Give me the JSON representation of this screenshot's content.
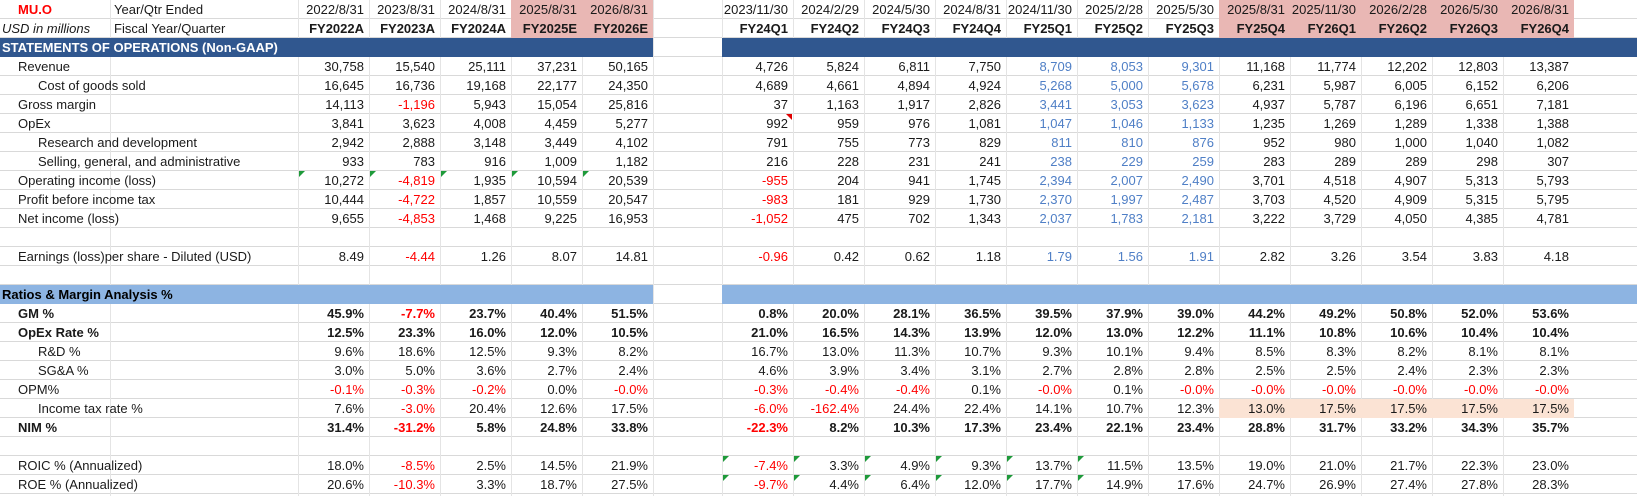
{
  "colors": {
    "pink_header": "#e9b7b4",
    "section_dark": "#30578f",
    "section_light": "#8db4e2",
    "negative": "#ff0000",
    "reported_blue": "#4f7fc6",
    "peach": "#fbe3d4"
  },
  "header": {
    "ticker": "MU.O",
    "year_label": "Year/Qtr Ended",
    "units": "USD in millions",
    "fiscal_label": "Fiscal Year/Quarter",
    "annual_dates": [
      "2022/8/31",
      "2023/8/31",
      "2024/8/31",
      "2025/8/31",
      "2026/8/31"
    ],
    "annual_periods": [
      "FY2022A",
      "FY2023A",
      "FY2024A",
      "FY2025E",
      "FY2026E"
    ],
    "quarter_dates": [
      "2023/11/30",
      "2024/2/29",
      "2024/5/30",
      "2024/8/31",
      "2024/11/30",
      "2025/2/28",
      "2025/5/30",
      "2025/8/31",
      "2025/11/30",
      "2026/2/28",
      "2026/5/30",
      "2026/8/31"
    ],
    "quarter_periods": [
      "FY24Q1",
      "FY24Q2",
      "FY24Q3",
      "FY24Q4",
      "FY25Q1",
      "FY25Q2",
      "FY25Q3",
      "FY25Q4",
      "FY26Q1",
      "FY26Q2",
      "FY26Q3",
      "FY26Q4"
    ]
  },
  "sections": {
    "operations": "STATEMENTS OF OPERATIONS (Non-GAAP)",
    "ratios": "Ratios & Margin Analysis %"
  },
  "rows": [
    {
      "label": "Revenue",
      "annual": [
        "30,758",
        "15,540",
        "25,111",
        "37,231",
        "50,165"
      ],
      "quarterly": [
        "4,726",
        "5,824",
        "6,811",
        "7,750",
        "8,709",
        "8,053",
        "9,301",
        "11,168",
        "11,774",
        "12,202",
        "12,803",
        "13,387"
      ]
    },
    {
      "label": "Cost of goods sold",
      "annual": [
        "16,645",
        "16,736",
        "19,168",
        "22,177",
        "24,350"
      ],
      "quarterly": [
        "4,689",
        "4,661",
        "4,894",
        "4,924",
        "5,268",
        "5,000",
        "5,678",
        "6,231",
        "5,987",
        "6,005",
        "6,152",
        "6,206"
      ]
    },
    {
      "label": "Gross margin",
      "annual": [
        "14,113",
        "-1,196",
        "5,943",
        "15,054",
        "25,816"
      ],
      "quarterly": [
        "37",
        "1,163",
        "1,917",
        "2,826",
        "3,441",
        "3,053",
        "3,623",
        "4,937",
        "5,787",
        "6,196",
        "6,651",
        "7,181"
      ]
    },
    {
      "label": "OpEx",
      "annual": [
        "3,841",
        "3,623",
        "4,008",
        "4,459",
        "5,277"
      ],
      "quarterly": [
        "992",
        "959",
        "976",
        "1,081",
        "1,047",
        "1,046",
        "1,133",
        "1,235",
        "1,269",
        "1,289",
        "1,338",
        "1,388"
      ]
    },
    {
      "label": "Research and development",
      "annual": [
        "2,942",
        "2,888",
        "3,148",
        "3,449",
        "4,102"
      ],
      "quarterly": [
        "791",
        "755",
        "773",
        "829",
        "811",
        "810",
        "876",
        "952",
        "980",
        "1,000",
        "1,040",
        "1,082"
      ]
    },
    {
      "label": "Selling, general, and administrative",
      "annual": [
        "933",
        "783",
        "916",
        "1,009",
        "1,182"
      ],
      "quarterly": [
        "216",
        "228",
        "231",
        "241",
        "238",
        "229",
        "259",
        "283",
        "289",
        "289",
        "298",
        "307"
      ]
    },
    {
      "label": "Operating income (loss)",
      "annual": [
        "10,272",
        "-4,819",
        "1,935",
        "10,594",
        "20,539"
      ],
      "quarterly": [
        "-955",
        "204",
        "941",
        "1,745",
        "2,394",
        "2,007",
        "2,490",
        "3,701",
        "4,518",
        "4,907",
        "5,313",
        "5,793"
      ]
    },
    {
      "label": "Profit before income tax",
      "annual": [
        "10,444",
        "-4,722",
        "1,857",
        "10,559",
        "20,547"
      ],
      "quarterly": [
        "-983",
        "181",
        "929",
        "1,730",
        "2,370",
        "1,997",
        "2,487",
        "3,703",
        "4,520",
        "4,909",
        "5,315",
        "5,795"
      ]
    },
    {
      "label": "Net income (loss)",
      "annual": [
        "9,655",
        "-4,853",
        "1,468",
        "9,225",
        "16,953"
      ],
      "quarterly": [
        "-1,052",
        "475",
        "702",
        "1,343",
        "2,037",
        "1,783",
        "2,181",
        "3,222",
        "3,729",
        "4,050",
        "4,385",
        "4,781"
      ]
    },
    {
      "label": "Earnings (loss)per share - Diluted (USD)",
      "annual": [
        "8.49",
        "-4.44",
        "1.26",
        "8.07",
        "14.81"
      ],
      "quarterly": [
        "-0.96",
        "0.42",
        "0.62",
        "1.18",
        "1.79",
        "1.56",
        "1.91",
        "2.82",
        "3.26",
        "3.54",
        "3.83",
        "4.18"
      ]
    },
    {
      "label": "GM %",
      "annual": [
        "45.9%",
        "-7.7%",
        "23.7%",
        "40.4%",
        "51.5%"
      ],
      "quarterly": [
        "0.8%",
        "20.0%",
        "28.1%",
        "36.5%",
        "39.5%",
        "37.9%",
        "39.0%",
        "44.2%",
        "49.2%",
        "50.8%",
        "52.0%",
        "53.6%"
      ]
    },
    {
      "label": "OpEx Rate %",
      "annual": [
        "12.5%",
        "23.3%",
        "16.0%",
        "12.0%",
        "10.5%"
      ],
      "quarterly": [
        "21.0%",
        "16.5%",
        "14.3%",
        "13.9%",
        "12.0%",
        "13.0%",
        "12.2%",
        "11.1%",
        "10.8%",
        "10.6%",
        "10.4%",
        "10.4%"
      ]
    },
    {
      "label": "R&D %",
      "annual": [
        "9.6%",
        "18.6%",
        "12.5%",
        "9.3%",
        "8.2%"
      ],
      "quarterly": [
        "16.7%",
        "13.0%",
        "11.3%",
        "10.7%",
        "9.3%",
        "10.1%",
        "9.4%",
        "8.5%",
        "8.3%",
        "8.2%",
        "8.1%",
        "8.1%"
      ]
    },
    {
      "label": "SG&A %",
      "annual": [
        "3.0%",
        "5.0%",
        "3.6%",
        "2.7%",
        "2.4%"
      ],
      "quarterly": [
        "4.6%",
        "3.9%",
        "3.4%",
        "3.1%",
        "2.7%",
        "2.8%",
        "2.8%",
        "2.5%",
        "2.5%",
        "2.4%",
        "2.3%",
        "2.3%"
      ]
    },
    {
      "label": "OPM%",
      "annual": [
        "-0.1%",
        "-0.3%",
        "-0.2%",
        "0.0%",
        "-0.0%"
      ],
      "quarterly": [
        "-0.3%",
        "-0.4%",
        "-0.4%",
        "0.1%",
        "-0.0%",
        "0.1%",
        "-0.0%",
        "-0.0%",
        "-0.0%",
        "-0.0%",
        "-0.0%",
        "-0.0%"
      ]
    },
    {
      "label": "Income tax rate %",
      "annual": [
        "7.6%",
        "-3.0%",
        "20.4%",
        "12.6%",
        "17.5%"
      ],
      "quarterly": [
        "-6.0%",
        "-162.4%",
        "24.4%",
        "22.4%",
        "14.1%",
        "10.7%",
        "12.3%",
        "13.0%",
        "17.5%",
        "17.5%",
        "17.5%",
        "17.5%"
      ]
    },
    {
      "label": "NIM %",
      "annual": [
        "31.4%",
        "-31.2%",
        "5.8%",
        "24.8%",
        "33.8%"
      ],
      "quarterly": [
        "-22.3%",
        "8.2%",
        "10.3%",
        "17.3%",
        "23.4%",
        "22.1%",
        "23.4%",
        "28.8%",
        "31.7%",
        "33.2%",
        "34.3%",
        "35.7%"
      ]
    },
    {
      "label": "ROIC % (Annualized)",
      "annual": [
        "18.0%",
        "-8.5%",
        "2.5%",
        "14.5%",
        "21.9%"
      ],
      "quarterly": [
        "-7.4%",
        "3.3%",
        "4.9%",
        "9.3%",
        "13.7%",
        "11.5%",
        "13.5%",
        "19.0%",
        "21.0%",
        "21.7%",
        "22.3%",
        "23.0%"
      ]
    },
    {
      "label": "ROE % (Annualized)",
      "annual": [
        "20.6%",
        "-10.3%",
        "3.3%",
        "18.7%",
        "27.5%"
      ],
      "quarterly": [
        "-9.7%",
        "4.4%",
        "6.4%",
        "12.0%",
        "17.7%",
        "14.9%",
        "17.6%",
        "24.7%",
        "26.9%",
        "27.4%",
        "27.8%",
        "28.3%"
      ]
    }
  ]
}
